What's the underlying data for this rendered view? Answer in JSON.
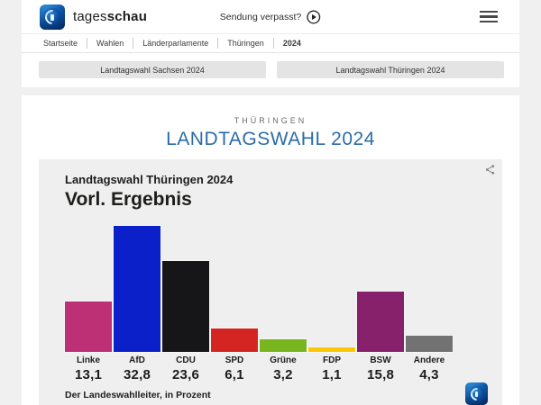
{
  "header": {
    "brand_regular": "tages",
    "brand_bold": "schau",
    "missed_show": "Sendung verpasst?",
    "breadcrumb": [
      "Startseite",
      "Wahlen",
      "Länderparlamente",
      "Thüringen",
      "2024"
    ]
  },
  "tabs": [
    {
      "label": "Landtagswahl Sachsen 2024"
    },
    {
      "label": "Landtagswahl Thüringen 2024"
    }
  ],
  "page": {
    "kicker": "THÜRINGEN",
    "title": "LANDTAGSWAHL 2024",
    "title_color": "#2b6ca8"
  },
  "chart_data": {
    "type": "bar",
    "title": "Landtagswahl Thüringen 2024",
    "subtitle": "Vorl. Ergebnis",
    "categories": [
      "Linke",
      "AfD",
      "CDU",
      "SPD",
      "Grüne",
      "FDP",
      "BSW",
      "Andere"
    ],
    "values": [
      13.1,
      32.8,
      23.6,
      6.1,
      3.2,
      1.1,
      15.8,
      4.3
    ],
    "value_labels": [
      "13,1",
      "32,8",
      "23,6",
      "6,1",
      "3,2",
      "1,1",
      "15,8",
      "4,3"
    ],
    "colors": [
      "#be3075",
      "#0c20c9",
      "#161618",
      "#d42522",
      "#79b51d",
      "#fcc700",
      "#87216b",
      "#727272"
    ],
    "source": "Der Landeswahlleiter, in Prozent",
    "xlabel": "",
    "ylabel": "Prozent",
    "ylim": [
      0,
      35
    ],
    "grid": false,
    "legend": "none"
  }
}
